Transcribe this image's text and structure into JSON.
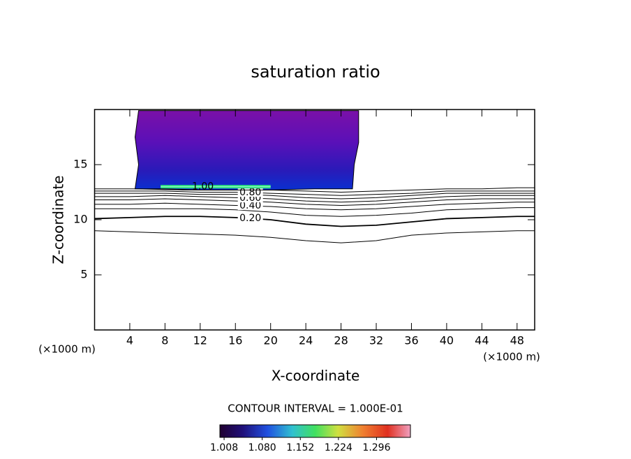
{
  "chart_data": {
    "type": "contour",
    "title": "saturation ratio",
    "x_label": "X-coordinate",
    "y_label": "Z-coordinate",
    "x_unit": "(×1000 m)",
    "y_unit": "(×1000 m)",
    "xlim": [
      0,
      50
    ],
    "xticks": [
      4,
      8,
      12,
      16,
      20,
      24,
      28,
      32,
      36,
      40,
      44,
      48
    ],
    "ylim": [
      0,
      20
    ],
    "yticks": [
      5,
      10,
      15
    ],
    "line_color": "#000000",
    "contours": [
      {
        "level": 0.1,
        "x": [
          0,
          4,
          8,
          12,
          16,
          20,
          24,
          28,
          32,
          36,
          40,
          44,
          48,
          50
        ],
        "y": [
          9.0,
          8.9,
          8.8,
          8.7,
          8.6,
          8.4,
          8.1,
          7.9,
          8.1,
          8.6,
          8.8,
          8.9,
          9.0,
          9.0
        ]
      },
      {
        "level": 0.2,
        "label": "0.20",
        "x": [
          0,
          4,
          8,
          12,
          16,
          20,
          24,
          28,
          32,
          36,
          40,
          44,
          48,
          50
        ],
        "y": [
          10.1,
          10.2,
          10.3,
          10.3,
          10.2,
          10.0,
          9.6,
          9.4,
          9.5,
          9.8,
          10.1,
          10.2,
          10.3,
          10.3
        ]
      },
      {
        "level": 0.3,
        "x": [
          0,
          4,
          8,
          12,
          16,
          20,
          24,
          28,
          32,
          36,
          40,
          44,
          48,
          50
        ],
        "y": [
          11.0,
          11.0,
          11.0,
          11.0,
          10.9,
          10.7,
          10.4,
          10.3,
          10.4,
          10.6,
          10.9,
          11.0,
          11.1,
          11.1
        ]
      },
      {
        "level": 0.4,
        "label": "0.40",
        "x": [
          0,
          4,
          8,
          12,
          16,
          20,
          24,
          28,
          32,
          36,
          40,
          44,
          48,
          50
        ],
        "y": [
          11.4,
          11.4,
          11.5,
          11.4,
          11.3,
          11.2,
          11.0,
          10.9,
          11.0,
          11.2,
          11.4,
          11.5,
          11.6,
          11.6
        ]
      },
      {
        "level": 0.5,
        "x": [
          0,
          4,
          8,
          12,
          16,
          20,
          24,
          28,
          32,
          36,
          40,
          44,
          48,
          50
        ],
        "y": [
          11.8,
          11.8,
          11.9,
          11.8,
          11.7,
          11.6,
          11.4,
          11.3,
          11.4,
          11.6,
          11.8,
          11.9,
          11.9,
          11.9
        ]
      },
      {
        "level": 0.6,
        "label": "0.60",
        "x": [
          0,
          4,
          8,
          12,
          16,
          20,
          24,
          28,
          32,
          36,
          40,
          44,
          48,
          50
        ],
        "y": [
          12.1,
          12.1,
          12.2,
          12.1,
          12.0,
          11.9,
          11.7,
          11.6,
          11.7,
          11.9,
          12.1,
          12.2,
          12.2,
          12.2
        ]
      },
      {
        "level": 0.7,
        "x": [
          0,
          4,
          8,
          12,
          16,
          20,
          24,
          28,
          32,
          36,
          40,
          44,
          48,
          50
        ],
        "y": [
          12.4,
          12.4,
          12.4,
          12.3,
          12.3,
          12.2,
          12.0,
          11.9,
          12.0,
          12.2,
          12.4,
          12.4,
          12.4,
          12.4
        ]
      },
      {
        "level": 0.8,
        "label": "0.80",
        "x": [
          0,
          4,
          8,
          12,
          16,
          20,
          24,
          28,
          32,
          36,
          40,
          44,
          48,
          50
        ],
        "y": [
          12.6,
          12.6,
          12.6,
          12.5,
          12.5,
          12.4,
          12.3,
          12.2,
          12.3,
          12.4,
          12.6,
          12.6,
          12.6,
          12.6
        ]
      },
      {
        "level": 0.9,
        "x": [
          0,
          4,
          8,
          12,
          16,
          20,
          24,
          28,
          32,
          36,
          40,
          44,
          48,
          50
        ],
        "y": [
          12.8,
          12.8,
          12.8,
          12.7,
          12.7,
          12.7,
          12.6,
          12.5,
          12.6,
          12.7,
          12.8,
          12.8,
          12.9,
          12.9
        ]
      },
      {
        "level": 1.0,
        "label": "1.00",
        "x": [
          7.5,
          12,
          16,
          20
        ],
        "y": [
          13.0,
          13.0,
          13.0,
          13.0
        ]
      }
    ],
    "filled_region": {
      "x": [
        5,
        30,
        30,
        29.5,
        29.3,
        25,
        20,
        10,
        4.6,
        5,
        4.6,
        5
      ],
      "y": [
        19.9,
        19.9,
        17,
        15,
        12.8,
        12.8,
        12.7,
        12.7,
        12.8,
        15,
        17.5,
        19.9
      ]
    },
    "contour_interval_text": "CONTOUR INTERVAL = 1.000E-01",
    "colorbar": {
      "clim": [
        1.0,
        1.36
      ],
      "ticks": [
        {
          "value": 1.008,
          "label": "1.008"
        },
        {
          "value": 1.08,
          "label": "1.080"
        },
        {
          "value": 1.152,
          "label": "1.152"
        },
        {
          "value": 1.224,
          "label": "1.224"
        },
        {
          "value": 1.296,
          "label": "1.296"
        }
      ]
    }
  }
}
